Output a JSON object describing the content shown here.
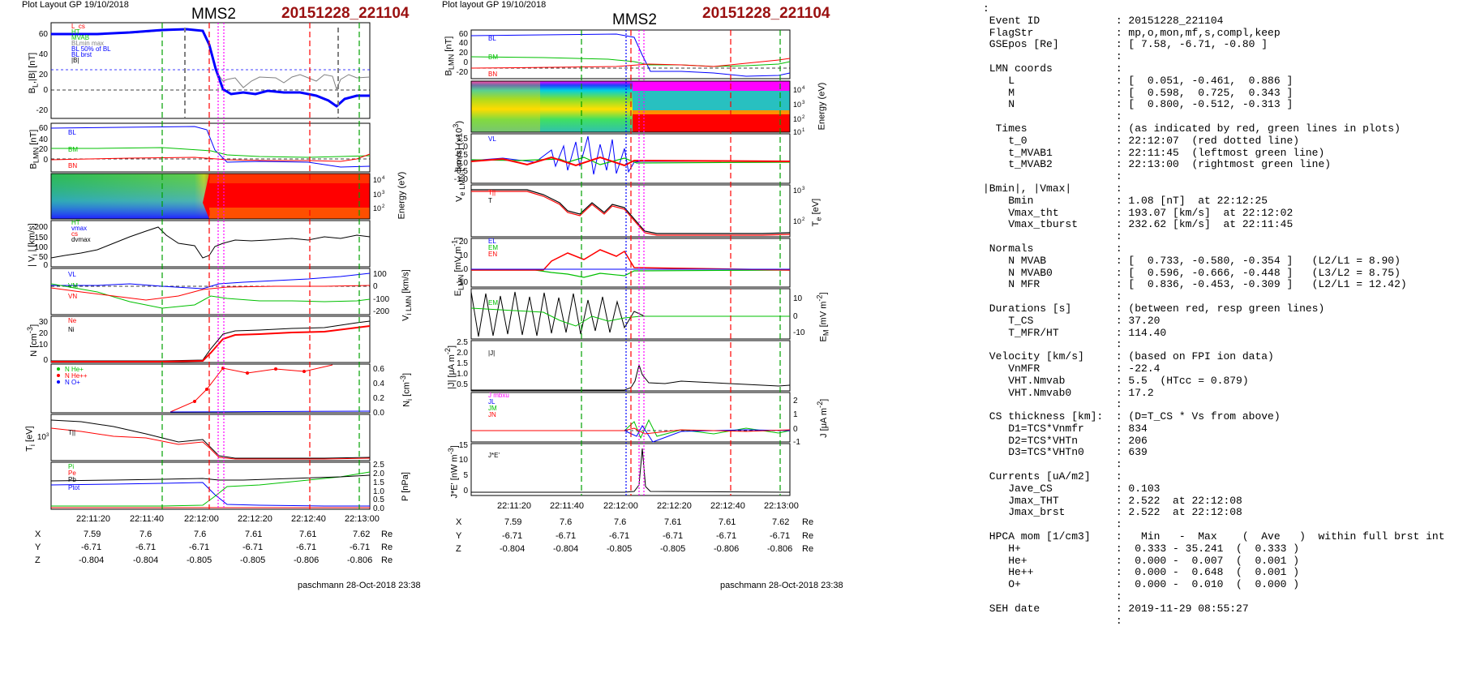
{
  "left_figure": {
    "header": {
      "plot_layout": "Plot Layout GP 19/10/2018",
      "spacecraft": "MMS2",
      "event": "20151228_221104"
    },
    "footer": "paschmann 28-Oct-2018 23:38",
    "coords": {
      "time_labels": [
        "22:11:20",
        "22:11:40",
        "22:12:00",
        "22:12:20",
        "22:12:40",
        "22:13:00"
      ],
      "rows": [
        {
          "name": "X",
          "values": [
            "7.59",
            "7.6",
            "7.6",
            "7.61",
            "7.61",
            "7.62"
          ],
          "unit": "Re"
        },
        {
          "name": "Y",
          "values": [
            "-6.71",
            "-6.71",
            "-6.71",
            "-6.71",
            "-6.71",
            "-6.71"
          ],
          "unit": "Re"
        },
        {
          "name": "Z",
          "values": [
            "-0.804",
            "-0.804",
            "-0.805",
            "-0.805",
            "-0.806",
            "-0.806"
          ],
          "unit": "Re"
        }
      ]
    }
  },
  "right_figure": {
    "header": {
      "plot_layout": "Plot layout GP 19/10/2018",
      "spacecraft": "MMS2",
      "event": "20151228_221104"
    },
    "footer": "paschmann 28-Oct-2018 23:38",
    "coords": {
      "time_labels": [
        "22:11:20",
        "22:11:40",
        "22:12:00",
        "22:12:20",
        "22:12:40",
        "22:13:00"
      ],
      "rows": [
        {
          "name": "X",
          "values": [
            "7.59",
            "7.6",
            "7.6",
            "7.61",
            "7.61",
            "7.62"
          ],
          "unit": "Re"
        },
        {
          "name": "Y",
          "values": [
            "-6.71",
            "-6.71",
            "-6.71",
            "-6.71",
            "-6.71",
            "-6.71"
          ],
          "unit": "Re"
        },
        {
          "name": "Z",
          "values": [
            "-0.804",
            "-0.804",
            "-0.805",
            "-0.805",
            "-0.806",
            "-0.806"
          ],
          "unit": "Re"
        }
      ]
    }
  },
  "summary": {
    "lines": [
      ":",
      " Event ID            : 20151228_221104",
      " FlagStr             : mp,o,mon,mf,s,compl,keep",
      " GSEpos [Re]         : [ 7.58, -6.71, -0.80 ]",
      "                     :",
      " LMN coords          :",
      "    L                : [  0.051, -0.461,  0.886 ]",
      "    M                : [  0.598,  0.725,  0.343 ]",
      "    N                : [  0.800, -0.512, -0.313 ]",
      "                     :",
      "  Times              : (as indicated by red, green lines in plots)",
      "    t_0              : 22:12:07  (red dotted line)",
      "    t_MVAB1          : 22:11:45  (leftmost green line)",
      "    t_MVAB2          : 22:13:00  (rightmost green line)",
      "                     :",
      "|Bmin|, |Vmax|       :",
      "    Bmin             : 1.08 [nT]  at 22:12:25",
      "    Vmax_tht         : 193.07 [km/s]  at 22:12:02",
      "    Vmax_tburst      : 232.62 [km/s]  at 22:11:45",
      "                     :",
      " Normals             :",
      "    N MVAB           : [  0.733, -0.580, -0.354 ]   (L2/L1 = 8.90)",
      "    N MVAB0          : [  0.596, -0.666, -0.448 ]   (L3/L2 = 8.75)",
      "    N MFR            : [  0.836, -0.453, -0.309 ]   (L2/L1 = 12.42)",
      "                     :",
      " Durations [s]       : (between red, resp green lines)",
      "    T_CS             : 37.20",
      "    T_MFR/HT         : 114.40",
      "                     :",
      " Velocity [km/s]     : (based on FPI ion data)",
      "    VnMFR            : -22.4",
      "    VHT.Nmvab        : 5.5  (HTcc = 0.879)",
      "    VHT.Nmvab0       : 17.2",
      "                     :",
      " CS thickness [km]:  : (D=T_CS * Vs from above)",
      "    D1=TCS*Vnmfr     : 834",
      "    D2=TCS*VHTn      : 206",
      "    D3=TCS*VHTn0     : 639",
      "                     :",
      " Currents [uA/m2]    :",
      "    Jave_CS          : 0.103",
      "    Jmax_THT         : 2.522  at 22:12:08",
      "    Jmax_brst        : 2.522  at 22:12:08",
      "                     :",
      " HPCA mom [1/cm3]    :   Min   -  Max    (  Ave   )  within full brst int",
      "    H+               :  0.333 - 35.241  (  0.333 )",
      "    He+              :  0.000 -  0.007  (  0.001 )",
      "    He++             :  0.000 -  0.648  (  0.001 )",
      "    O+               :  0.000 -  0.010  (  0.000 )",
      "                     :",
      " SEH date            : 2019-11-29 08:55:27",
      "                     :"
    ]
  },
  "chart_data": [
    {
      "type": "line",
      "panel": "left-BL",
      "ylabel": "B_L, |B| [nT]",
      "ylim": [
        -30,
        70
      ],
      "yticks": [
        -20,
        0,
        20,
        40,
        60
      ],
      "legend": [
        "BL",
        "HT",
        "MVAB",
        "BL min max",
        "BL 50% of BL",
        "BL brst",
        "|B|"
      ],
      "x": [
        22.188,
        22.19,
        22.192,
        22.194,
        22.195,
        22.196,
        22.198,
        22.2,
        22.2017,
        22.203,
        22.204,
        22.206,
        22.208,
        22.21,
        22.212,
        22.214,
        22.216,
        22.2167
      ],
      "series": [
        {
          "name": "BL",
          "color": "#0000ff",
          "values": [
            60,
            60,
            62,
            64,
            65,
            60,
            30,
            -5,
            -2,
            -2,
            -2,
            -3,
            -3,
            -5,
            -9,
            -10,
            -10,
            -9
          ]
        },
        {
          "name": "|B|",
          "color": "#808080",
          "values": [
            61,
            61,
            62,
            64,
            65,
            63,
            40,
            15,
            12,
            12,
            15,
            13,
            15,
            12,
            14,
            13,
            20,
            16
          ]
        }
      ]
    },
    {
      "type": "line",
      "panel": "left-BLMN",
      "ylabel": "B_LMN [nT]",
      "ylim": [
        -15,
        65
      ],
      "yticks": [
        0,
        20,
        40,
        60
      ],
      "legend": [
        "BL",
        "BM",
        "BN"
      ],
      "x": [
        22.188,
        22.192,
        22.195,
        22.197,
        22.2,
        22.204,
        22.208,
        22.212,
        22.216
      ],
      "series": [
        {
          "name": "BL",
          "color": "#0000ff",
          "values": [
            60,
            62,
            63,
            40,
            -3,
            -2,
            -3,
            -9,
            -9
          ]
        },
        {
          "name": "BM",
          "color": "#00c000",
          "values": [
            22,
            22,
            18,
            15,
            8,
            7,
            5,
            6,
            7
          ]
        },
        {
          "name": "BN",
          "color": "#ff0000",
          "values": [
            0,
            1,
            2,
            0,
            -1,
            -2,
            -1,
            -1,
            3
          ]
        }
      ]
    },
    {
      "type": "heatmap",
      "panel": "left-ion-energy",
      "ylabel": "Energy (eV)",
      "yscale": "log",
      "ylim": [
        10,
        30000
      ],
      "yticks": [
        "10^2",
        "10^3",
        "10^4"
      ]
    },
    {
      "type": "line",
      "panel": "left-Vi",
      "ylabel": "|V_i| [km/s]",
      "ylim": [
        0,
        250
      ],
      "yticks": [
        0,
        50,
        100,
        150,
        200
      ],
      "legend": [
        "HT",
        "vmax",
        "cs",
        "dvmax"
      ],
      "x": [
        22.188,
        22.19,
        22.192,
        22.194,
        22.196,
        22.198,
        22.2,
        22.204,
        22.208,
        22.212,
        22.216
      ],
      "series": [
        {
          "name": "|Vi|",
          "color": "#000000",
          "values": [
            60,
            90,
            140,
            180,
            120,
            60,
            130,
            140,
            140,
            145,
            150
          ]
        }
      ]
    },
    {
      "type": "line",
      "panel": "left-ViLMN",
      "ylabel": "V_i LMN [km/s]",
      "ylim": [
        -230,
        130
      ],
      "yticks": [
        -200,
        -100,
        0,
        100
      ],
      "legend": [
        "VL",
        "VM",
        "VN"
      ],
      "x": [
        22.188,
        22.192,
        22.195,
        22.197,
        22.2,
        22.204,
        22.208,
        22.212,
        22.216
      ],
      "series": [
        {
          "name": "VL",
          "color": "#0000ff",
          "values": [
            20,
            10,
            0,
            30,
            60,
            70,
            80,
            90,
            100
          ]
        },
        {
          "name": "VM",
          "color": "#00c000",
          "values": [
            10,
            -60,
            -140,
            -20,
            -60,
            -70,
            -80,
            -90,
            -80
          ]
        },
        {
          "name": "VN",
          "color": "#ff0000",
          "values": [
            -10,
            -40,
            -80,
            -10,
            0,
            0,
            0,
            5,
            5
          ]
        }
      ]
    },
    {
      "type": "line",
      "panel": "left-N",
      "ylabel": "N [cm^-3]",
      "ylim": [
        0,
        38
      ],
      "yticks": [
        0,
        10,
        20,
        30
      ],
      "legend": [
        "Ne",
        "Ni"
      ],
      "x": [
        22.188,
        22.192,
        22.196,
        22.198,
        22.2,
        22.204,
        22.208,
        22.212,
        22.2167
      ],
      "series": [
        {
          "name": "Ne",
          "color": "#ff0000",
          "values": [
            0.5,
            0.5,
            0.5,
            5,
            22,
            24,
            25,
            27,
            30
          ]
        },
        {
          "name": "Ni",
          "color": "#000000",
          "values": [
            0.5,
            0.5,
            0.5,
            8,
            26,
            28,
            29,
            30,
            33
          ]
        }
      ]
    },
    {
      "type": "line",
      "panel": "left-Ni-hpca",
      "ylabel": "N_i [cm^-3]",
      "ylim": [
        0,
        0.65
      ],
      "yticks": [
        0,
        0.2,
        0.4,
        0.6
      ],
      "legend": [
        "N He+",
        "N He++",
        "N O+"
      ],
      "x": [
        22.19,
        22.194,
        22.196,
        22.198,
        22.2,
        22.204,
        22.208,
        22.212
      ],
      "series": [
        {
          "name": "N He++",
          "color": "#ff0000",
          "values": [
            0,
            0.1,
            0.3,
            0.58,
            0.55,
            0.58,
            0.56,
            0.62
          ]
        },
        {
          "name": "N O+",
          "color": "#0000ff",
          "values": [
            0,
            0,
            0.01,
            0.01,
            0.01,
            0.01,
            0.01,
            0.01
          ]
        }
      ]
    },
    {
      "type": "line",
      "panel": "left-Ti",
      "ylabel": "T_i [eV]",
      "yscale": "log",
      "yticks": [
        "10^3"
      ],
      "legend": [
        "T||",
        "T_perp"
      ],
      "x": [
        22.188,
        22.192,
        22.196,
        22.198,
        22.2,
        22.208,
        22.2167
      ],
      "series": [
        {
          "name": "T||",
          "color": "#000000",
          "values": [
            3000,
            2500,
            2000,
            1200,
            300,
            300,
            300
          ]
        },
        {
          "name": "T_perp",
          "color": "#ff0000",
          "values": [
            2000,
            1700,
            1400,
            900,
            280,
            280,
            280
          ]
        }
      ]
    },
    {
      "type": "line",
      "panel": "left-P",
      "ylabel": "P [nPa]",
      "ylim": [
        0,
        2.6
      ],
      "yticks": [
        0,
        0.5,
        1.0,
        1.5,
        2.0,
        2.5
      ],
      "legend": [
        "Pi",
        "Pe",
        "Pb",
        "Ptot"
      ],
      "x": [
        22.188,
        22.194,
        22.196,
        22.198,
        22.2,
        22.208,
        22.2167
      ],
      "series": [
        {
          "name": "Pb",
          "color": "#0000ff",
          "values": [
            1.5,
            1.6,
            1.65,
            0.8,
            0.1,
            0.1,
            0.1
          ]
        },
        {
          "name": "Pi",
          "color": "#00c000",
          "values": [
            0.1,
            0.1,
            0.1,
            1.0,
            1.5,
            1.8,
            2.2
          ]
        },
        {
          "name": "Ptot",
          "color": "#000000",
          "values": [
            1.6,
            1.7,
            1.75,
            1.9,
            1.8,
            1.9,
            2.0
          ]
        }
      ]
    },
    {
      "type": "line",
      "panel": "right-BLMN",
      "ylabel": "B_LMN [nT]",
      "ylim": [
        -25,
        65
      ],
      "yticks": [
        -20,
        0,
        20,
        40,
        60
      ],
      "legend": [
        "BL",
        "BM",
        "BN"
      ],
      "x": [
        22.188,
        22.192,
        22.195,
        22.197,
        22.2,
        22.204,
        22.208,
        22.212,
        22.216
      ],
      "series": [
        {
          "name": "BL",
          "color": "#0000ff",
          "values": [
            59,
            60,
            62,
            40,
            -5,
            -2,
            -5,
            -10,
            -8
          ]
        },
        {
          "name": "BM",
          "color": "#00c000",
          "values": [
            20,
            18,
            15,
            10,
            5,
            8,
            6,
            7,
            9
          ]
        },
        {
          "name": "BN",
          "color": "#ff0000",
          "values": [
            0,
            1,
            2,
            0,
            2,
            1,
            2,
            3,
            8
          ]
        }
      ]
    },
    {
      "type": "heatmap",
      "panel": "right-electron-energy",
      "ylabel": "Energy (eV)",
      "yscale": "log",
      "ylim": [
        10,
        30000
      ],
      "yticks": [
        "10^1",
        "10^2",
        "10^3",
        "10^4"
      ]
    },
    {
      "type": "line",
      "panel": "right-VeLMN",
      "ylabel": "V_e LMN [km/s] (x10^3)",
      "ylim": [
        -1.2,
        1.6
      ],
      "yticks": [
        -1.0,
        -0.5,
        0.0,
        0.5,
        1.0,
        1.5
      ],
      "legend": [
        "VL",
        "VM",
        "VN"
      ]
    },
    {
      "type": "line",
      "panel": "right-Te",
      "ylabel": "T_e [eV]",
      "yscale": "log",
      "yticks": [
        "10^2",
        "10^3"
      ],
      "legend": [
        "T||",
        "T_perp"
      ]
    },
    {
      "type": "line",
      "panel": "right-ELMN",
      "ylabel": "E_LMN [mV m^-1]",
      "ylim": [
        -15,
        25
      ],
      "yticks": [
        -10,
        0,
        10,
        20
      ],
      "legend": [
        "EL",
        "EM",
        "EN"
      ]
    },
    {
      "type": "line",
      "panel": "right-EM",
      "ylabel": "E_M [mV m^-2]",
      "ylim": [
        -15,
        15
      ],
      "yticks": [
        -10,
        0,
        10
      ],
      "legend": [
        "EM"
      ]
    },
    {
      "type": "line",
      "panel": "right-J",
      "ylabel": "|J| [μA m^-2]",
      "ylim": [
        0,
        2.5
      ],
      "yticks": [
        0.5,
        1.0,
        1.5,
        2.0,
        2.5
      ],
      "legend": [
        "|J|"
      ]
    },
    {
      "type": "line",
      "panel": "right-JLMN",
      "ylabel": "J [μA m^-2]",
      "ylim": [
        -1,
        2.5
      ],
      "yticks": [
        -1,
        0,
        1,
        2
      ],
      "legend": [
        "J mbxu",
        "JL",
        "JM",
        "JN"
      ]
    },
    {
      "type": "line",
      "panel": "right-JE",
      "ylabel": "J*E' [nW m^-3]",
      "ylim": [
        -1,
        16
      ],
      "yticks": [
        0,
        5,
        10,
        15
      ],
      "legend": [
        "J*E'"
      ]
    },
    {
      "type": "markers",
      "time_lines": [
        {
          "label": "t_MVAB1",
          "time": "22:11:45",
          "color": "#00a000",
          "style": "dashed"
        },
        {
          "label": "t_0",
          "time": "22:12:07",
          "color": "#ff00ff",
          "style": "dotted"
        },
        {
          "label": "t_MVAB2",
          "time": "22:13:00",
          "color": "#00a000",
          "style": "dashed"
        }
      ]
    }
  ]
}
